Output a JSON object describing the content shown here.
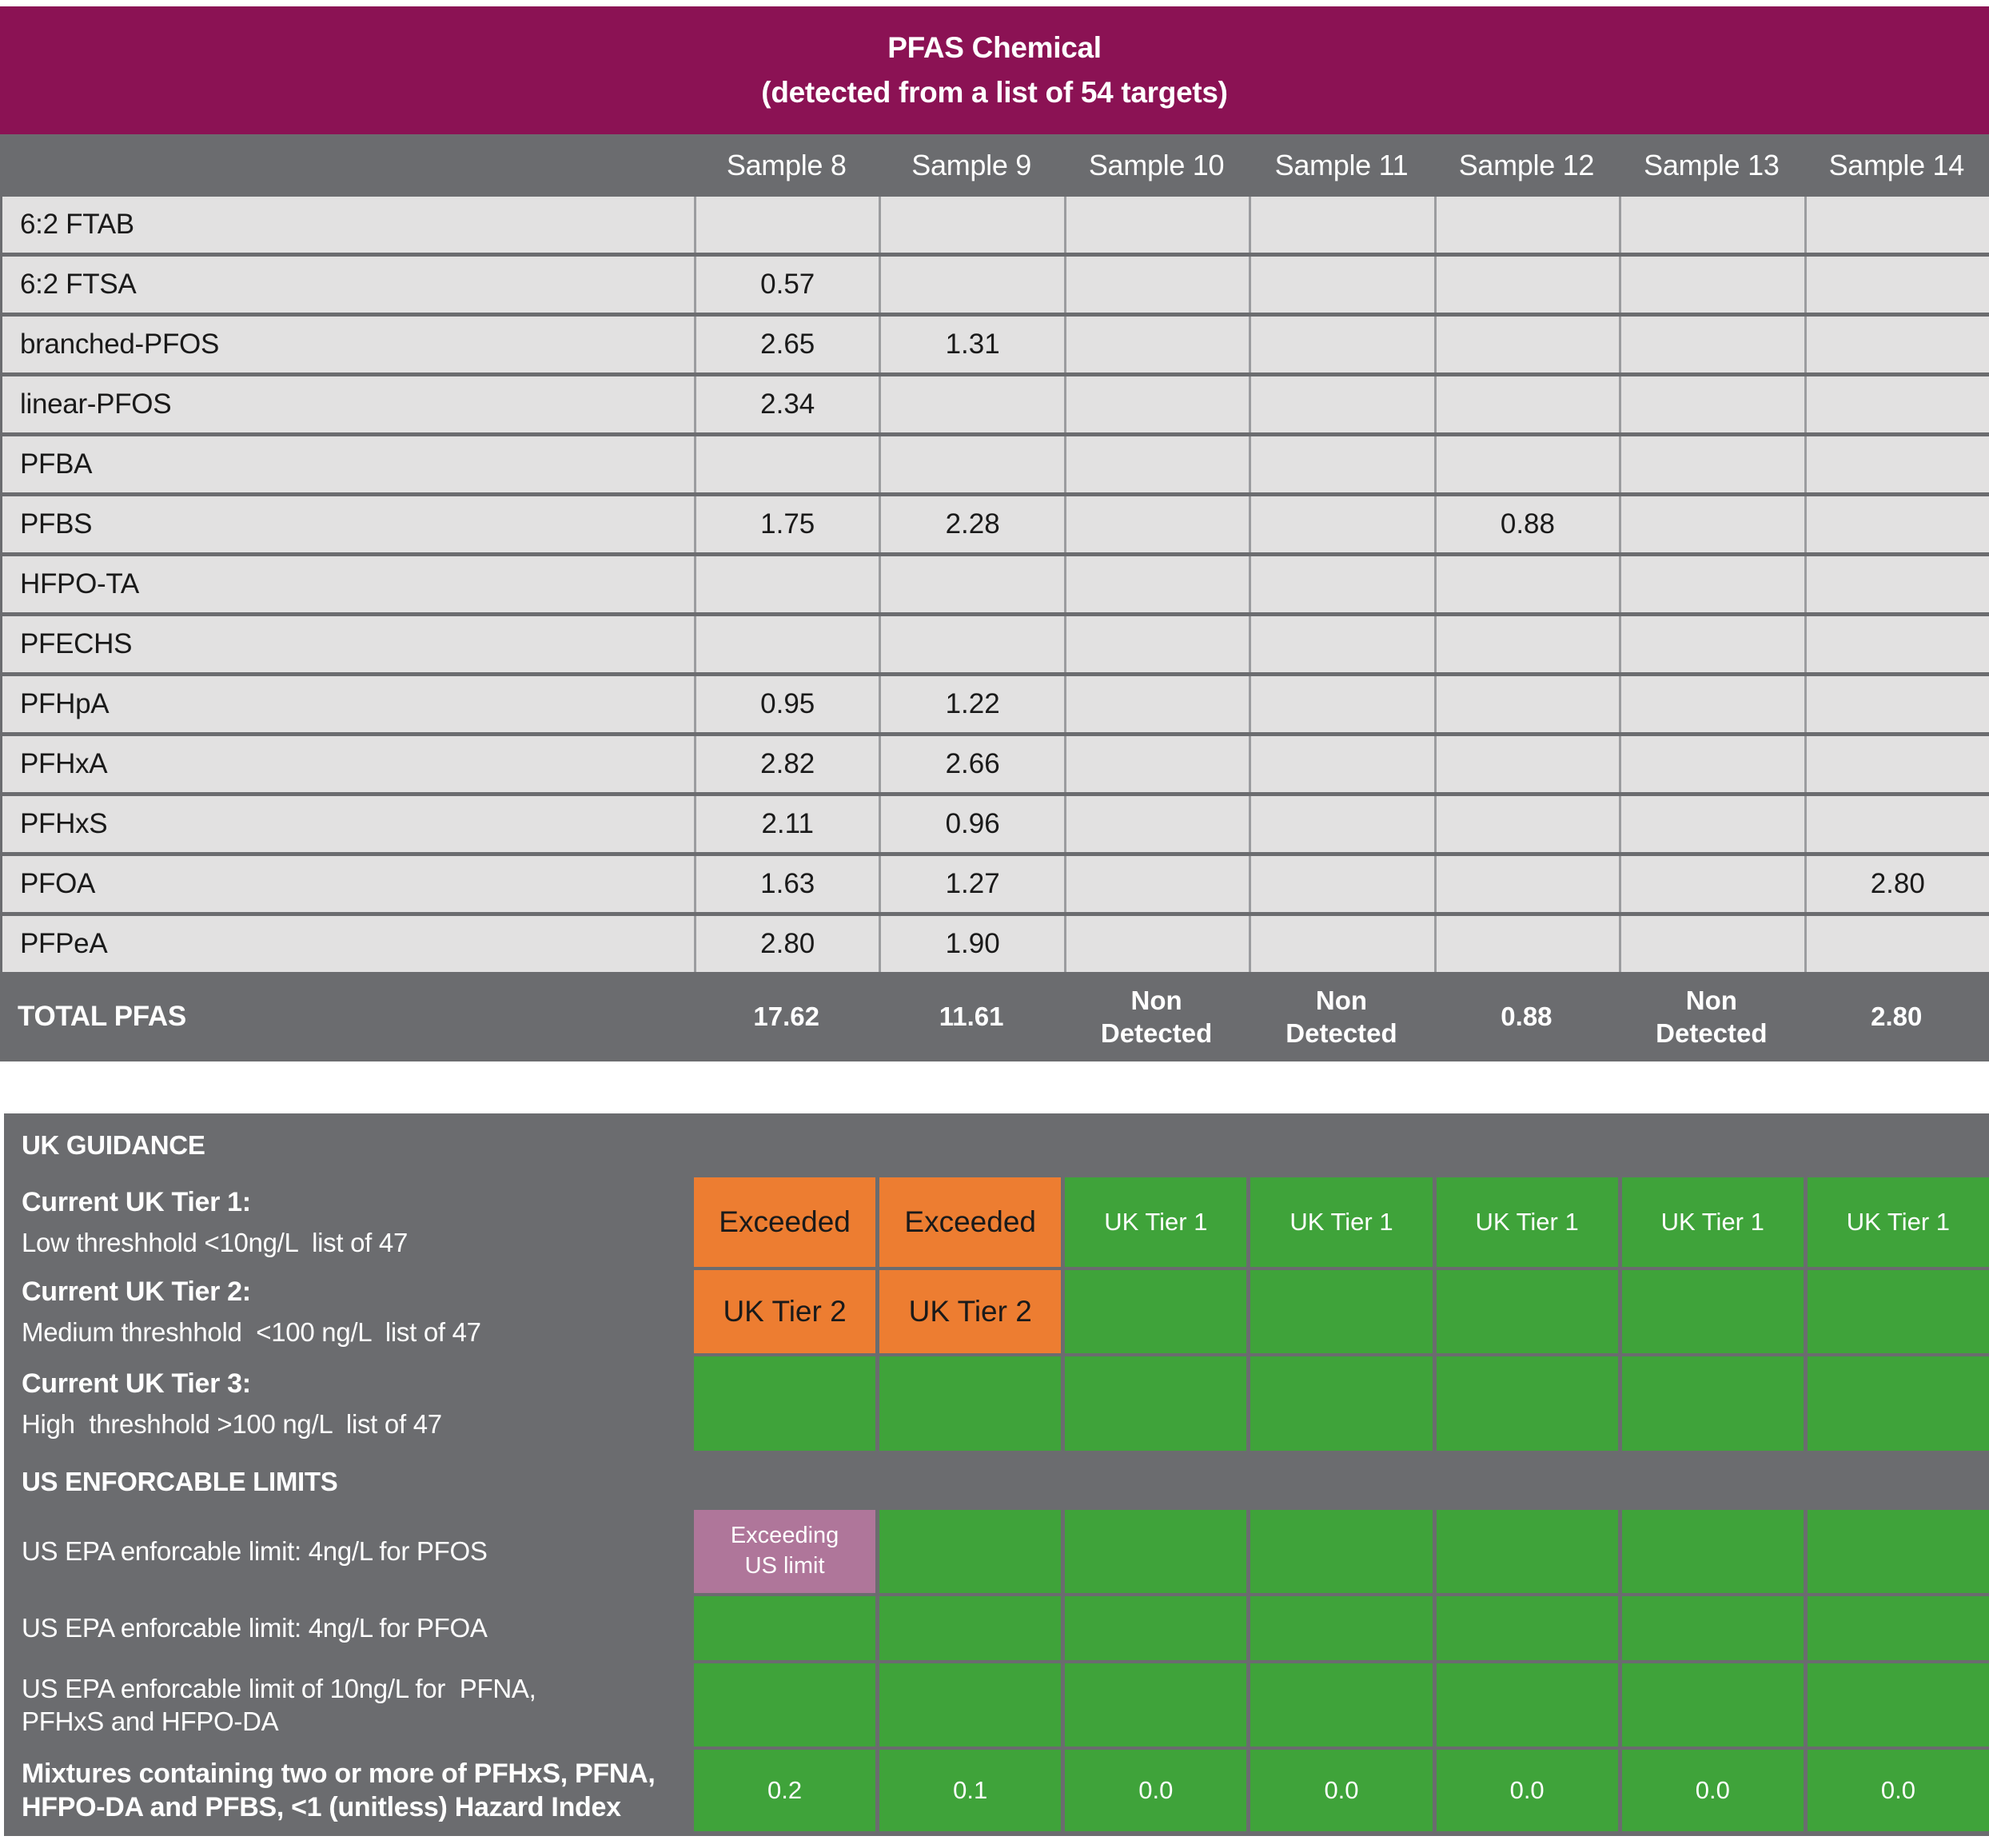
{
  "colors": {
    "header_magenta": "#8B1254",
    "band_gray": "#6B6C6F",
    "cell_light_gray": "#E2E1E1",
    "alert_orange": "#ED7D31",
    "ok_green": "#3FA33A",
    "exceed_pink": "#AF769A"
  },
  "top_table": {
    "title_line1": "PFAS Chemical",
    "title_line2": "(detected from a list of 54 targets)",
    "sample_headers": [
      "Sample 8",
      "Sample 9",
      "Sample 10",
      "Sample 11",
      "Sample 12",
      "Sample 13",
      "Sample 14"
    ],
    "rows": [
      {
        "chemical": "6:2 FTAB",
        "values": [
          "",
          "",
          "",
          "",
          "",
          "",
          ""
        ]
      },
      {
        "chemical": "6:2 FTSA",
        "values": [
          "0.57",
          "",
          "",
          "",
          "",
          "",
          ""
        ]
      },
      {
        "chemical": "branched-PFOS",
        "values": [
          "2.65",
          "1.31",
          "",
          "",
          "",
          "",
          ""
        ]
      },
      {
        "chemical": "linear-PFOS",
        "values": [
          "2.34",
          "",
          "",
          "",
          "",
          "",
          ""
        ]
      },
      {
        "chemical": "PFBA",
        "values": [
          "",
          "",
          "",
          "",
          "",
          "",
          ""
        ]
      },
      {
        "chemical": "PFBS",
        "values": [
          "1.75",
          "2.28",
          "",
          "",
          "0.88",
          "",
          ""
        ]
      },
      {
        "chemical": "HFPO-TA",
        "values": [
          "",
          "",
          "",
          "",
          "",
          "",
          ""
        ]
      },
      {
        "chemical": "PFECHS",
        "values": [
          "",
          "",
          "",
          "",
          "",
          "",
          ""
        ]
      },
      {
        "chemical": "PFHpA",
        "values": [
          "0.95",
          "1.22",
          "",
          "",
          "",
          "",
          ""
        ]
      },
      {
        "chemical": "PFHxA",
        "values": [
          "2.82",
          "2.66",
          "",
          "",
          "",
          "",
          ""
        ]
      },
      {
        "chemical": "PFHxS",
        "values": [
          "2.11",
          "0.96",
          "",
          "",
          "",
          "",
          ""
        ]
      },
      {
        "chemical": "PFOA",
        "values": [
          "1.63",
          "1.27",
          "",
          "",
          "",
          "",
          "2.80"
        ]
      },
      {
        "chemical": "PFPeA",
        "values": [
          "2.80",
          "1.90",
          "",
          "",
          "",
          "",
          ""
        ]
      }
    ],
    "total_row": {
      "label": "TOTAL PFAS",
      "values": [
        "17.62",
        "11.61",
        "Non Detected",
        "Non Detected",
        "0.88",
        "Non Detected",
        "2.80"
      ]
    }
  },
  "guidance": {
    "rows": [
      {
        "type": "section",
        "id": "uk-guidance",
        "label": "UK GUIDANCE"
      },
      {
        "type": "row",
        "id": "tier1",
        "label_bold": "Current UK Tier 1:",
        "label_sub": "Low threshhold <10ng/L  list of 47",
        "cells": [
          {
            "text": "Exceeded",
            "bg": "orange"
          },
          {
            "text": "Exceeded",
            "bg": "orange"
          },
          {
            "text": "UK Tier 1",
            "bg": "green"
          },
          {
            "text": "UK Tier 1",
            "bg": "green"
          },
          {
            "text": "UK Tier 1",
            "bg": "green"
          },
          {
            "text": "UK Tier 1",
            "bg": "green"
          },
          {
            "text": "UK Tier 1",
            "bg": "green"
          }
        ]
      },
      {
        "type": "row",
        "id": "tier2",
        "label_bold": "Current UK Tier 2:",
        "label_sub": "Medium threshhold  <100 ng/L  list of 47",
        "cells": [
          {
            "text": "UK Tier 2",
            "bg": "orange"
          },
          {
            "text": "UK Tier 2",
            "bg": "orange"
          },
          {
            "text": "",
            "bg": "green"
          },
          {
            "text": "",
            "bg": "green"
          },
          {
            "text": "",
            "bg": "green"
          },
          {
            "text": "",
            "bg": "green"
          },
          {
            "text": "",
            "bg": "green"
          }
        ]
      },
      {
        "type": "row",
        "id": "tier3",
        "label_bold": "Current UK Tier 3:",
        "label_sub": "High  threshhold >100 ng/L  list of 47",
        "cells": [
          {
            "text": "",
            "bg": "green"
          },
          {
            "text": "",
            "bg": "green"
          },
          {
            "text": "",
            "bg": "green"
          },
          {
            "text": "",
            "bg": "green"
          },
          {
            "text": "",
            "bg": "green"
          },
          {
            "text": "",
            "bg": "green"
          },
          {
            "text": "",
            "bg": "green"
          }
        ]
      },
      {
        "type": "section",
        "id": "us-limits",
        "label": "US ENFORCABLE LIMITS"
      },
      {
        "type": "row",
        "id": "pfos",
        "label_sub": "US EPA enforcable limit: 4ng/L for PFOS",
        "cells": [
          {
            "text": "Exceeding US limit",
            "bg": "pink"
          },
          {
            "text": "",
            "bg": "green"
          },
          {
            "text": "",
            "bg": "green"
          },
          {
            "text": "",
            "bg": "green"
          },
          {
            "text": "",
            "bg": "green"
          },
          {
            "text": "",
            "bg": "green"
          },
          {
            "text": "",
            "bg": "green"
          }
        ]
      },
      {
        "type": "row",
        "id": "pfoa",
        "label_sub": "US EPA enforcable limit: 4ng/L for PFOA",
        "cells": [
          {
            "text": "",
            "bg": "green"
          },
          {
            "text": "",
            "bg": "green"
          },
          {
            "text": "",
            "bg": "green"
          },
          {
            "text": "",
            "bg": "green"
          },
          {
            "text": "",
            "bg": "green"
          },
          {
            "text": "",
            "bg": "green"
          },
          {
            "text": "",
            "bg": "green"
          }
        ]
      },
      {
        "type": "row",
        "id": "limit10",
        "label_sub": "US EPA enforcable limit of 10ng/L for  PFNA,\nPFHxS and HFPO-DA",
        "cells": [
          {
            "text": "",
            "bg": "green"
          },
          {
            "text": "",
            "bg": "green"
          },
          {
            "text": "",
            "bg": "green"
          },
          {
            "text": "",
            "bg": "green"
          },
          {
            "text": "",
            "bg": "green"
          },
          {
            "text": "",
            "bg": "green"
          },
          {
            "text": "",
            "bg": "green"
          }
        ]
      },
      {
        "type": "row",
        "id": "mixtures",
        "label_bold": "Mixtures containing two or more of PFHxS, PFNA,\nHFPO-DA and PFBS, <1 (unitless) Hazard Index",
        "cells": [
          {
            "text": "0.2",
            "bg": "green"
          },
          {
            "text": "0.1",
            "bg": "green"
          },
          {
            "text": "0.0",
            "bg": "green"
          },
          {
            "text": "0.0",
            "bg": "green"
          },
          {
            "text": "0.0",
            "bg": "green"
          },
          {
            "text": "0.0",
            "bg": "green"
          },
          {
            "text": "0.0",
            "bg": "green"
          }
        ]
      }
    ]
  }
}
